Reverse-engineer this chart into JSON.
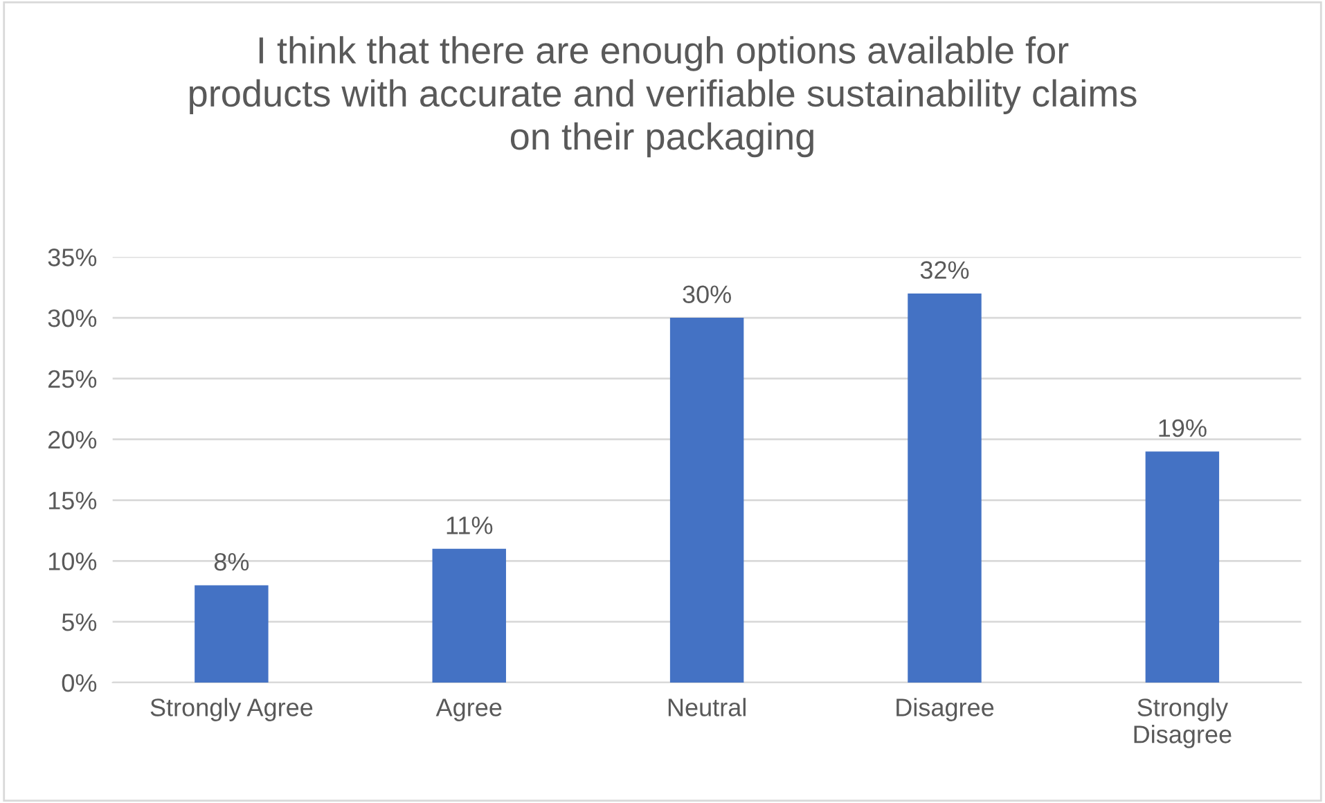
{
  "chart_data": {
    "type": "bar",
    "title": "I think that there are enough options available for\nproducts with accurate and verifiable sustainability claims\non their packaging",
    "categories": [
      "Strongly Agree",
      "Agree",
      "Neutral",
      "Disagree",
      "Strongly\nDisagree"
    ],
    "values": [
      8,
      11,
      30,
      32,
      19
    ],
    "color": "#4472c4",
    "value_labels": [
      "8%",
      "11%",
      "30%",
      "32%",
      "19%"
    ],
    "ylim": [
      0,
      35
    ],
    "yticks": [
      {
        "value": 0,
        "label": "0%"
      },
      {
        "value": 5,
        "label": "5%"
      },
      {
        "value": 10,
        "label": "10%"
      },
      {
        "value": 15,
        "label": "15%"
      },
      {
        "value": 20,
        "label": "20%"
      },
      {
        "value": 25,
        "label": "25%"
      },
      {
        "value": 30,
        "label": "30%"
      },
      {
        "value": 35,
        "label": "35%"
      }
    ],
    "grid": "y",
    "legend": false
  }
}
